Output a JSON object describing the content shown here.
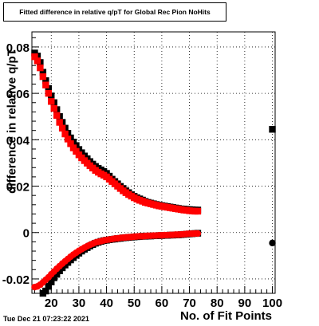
{
  "title": "Fitted difference in relative q/pT for Global Rec Pion NoHits",
  "timestamp": "Tue Dec 21 07:23:22 2021",
  "colors": {
    "red": "#ff0000",
    "black": "#000000",
    "grid": "#000000"
  },
  "chart_data": {
    "type": "scatter",
    "title": "Fitted difference in relative q/pT for Global Rec Pion NoHits",
    "xlabel": "No. of Fit Points",
    "ylabel": "difference in relative q/pT",
    "xlim": [
      13,
      101
    ],
    "ylim": [
      -0.0262,
      0.0865
    ],
    "grid": true,
    "x_ticks": [
      "20",
      "30",
      "40",
      "50",
      "60",
      "70",
      "80",
      "90",
      "100"
    ],
    "y_ticks": [
      "-0.02",
      "0",
      "0.02",
      "0.04",
      "0.06",
      "0.08"
    ],
    "series": [
      {
        "color": "#000000",
        "marker": "square",
        "x": [
          14,
          15,
          16,
          17,
          18,
          19,
          20,
          21,
          22,
          23,
          24,
          25,
          26,
          27,
          28,
          29,
          30,
          31,
          32,
          33,
          34,
          35,
          36,
          37,
          38,
          39,
          40,
          41,
          42,
          43,
          44,
          45,
          46,
          47,
          48,
          49,
          50,
          51,
          52,
          53,
          54,
          55,
          56,
          57,
          58,
          59,
          60,
          61,
          62,
          63,
          64,
          65,
          66,
          67,
          68,
          69,
          70,
          71,
          72,
          73
        ],
        "y": [
          0.0774,
          0.0761,
          0.0733,
          0.0691,
          0.0655,
          0.0621,
          0.0589,
          0.056,
          0.053,
          0.05,
          0.0475,
          0.045,
          0.0428,
          0.0408,
          0.039,
          0.0375,
          0.0358,
          0.0344,
          0.033,
          0.0318,
          0.0306,
          0.0295,
          0.0285,
          0.0277,
          0.027,
          0.0263,
          0.0255,
          0.0243,
          0.023,
          0.022,
          0.021,
          0.0199,
          0.019,
          0.018,
          0.0172,
          0.0163,
          0.0156,
          0.015,
          0.0145,
          0.014,
          0.0134,
          0.013,
          0.0127,
          0.0124,
          0.0121,
          0.0118,
          0.0116,
          0.0114,
          0.0112,
          0.011,
          0.0108,
          0.0106,
          0.0104,
          0.0102,
          0.0101,
          0.01,
          0.0099,
          0.0098,
          0.0097,
          0.0097
        ]
      },
      {
        "color": "#000000",
        "marker": "square",
        "x": [
          17,
          18,
          19,
          20,
          21,
          22,
          23,
          24,
          25,
          26,
          27,
          28,
          29,
          30,
          31,
          32,
          33,
          34,
          35,
          36,
          37,
          38,
          39,
          40,
          41,
          42,
          43,
          44,
          45,
          46,
          47,
          48,
          49,
          50,
          51,
          52,
          53,
          54,
          55,
          56,
          57,
          58,
          59,
          60,
          61,
          62,
          63,
          64,
          65,
          66,
          67,
          68,
          69,
          70,
          71,
          72,
          73
        ],
        "y": [
          -0.0262,
          -0.0252,
          -0.0232,
          -0.0213,
          -0.0195,
          -0.018,
          -0.0165,
          -0.0152,
          -0.014,
          -0.0129,
          -0.0118,
          -0.0108,
          -0.0098,
          -0.0089,
          -0.008,
          -0.0072,
          -0.0065,
          -0.0058,
          -0.0052,
          -0.0046,
          -0.0042,
          -0.0038,
          -0.0035,
          -0.0033,
          -0.0031,
          -0.0029,
          -0.0028,
          -0.0026,
          -0.0025,
          -0.0023,
          -0.0022,
          -0.0021,
          -0.002,
          -0.0019,
          -0.0018,
          -0.0017,
          -0.0016,
          -0.0016,
          -0.0015,
          -0.0015,
          -0.0014,
          -0.0014,
          -0.0013,
          -0.0013,
          -0.0012,
          -0.0012,
          -0.0011,
          -0.0011,
          -0.001,
          -0.001,
          -0.0009,
          -0.0008,
          -0.0007,
          -0.0006,
          -0.0005,
          -0.0004,
          -0.0003
        ]
      },
      {
        "color": "#ff0000",
        "marker": "square",
        "x": [
          14,
          15,
          16,
          17,
          18,
          19,
          20,
          21,
          22,
          23,
          24,
          25,
          26,
          27,
          28,
          29,
          30,
          31,
          32,
          33,
          34,
          35,
          36,
          37,
          38,
          39,
          40,
          41,
          42,
          43,
          44,
          45,
          46,
          47,
          48,
          49,
          50,
          51,
          52,
          53,
          54,
          55,
          56,
          57,
          58,
          59,
          60,
          61,
          62,
          63,
          64,
          65,
          66,
          67,
          68,
          69,
          70,
          71,
          72,
          73
        ],
        "y": [
          0.0758,
          0.074,
          0.071,
          0.0672,
          0.0636,
          0.06,
          0.0565,
          0.0535,
          0.0505,
          0.0475,
          0.045,
          0.0425,
          0.0403,
          0.0383,
          0.0365,
          0.035,
          0.0335,
          0.0322,
          0.031,
          0.0299,
          0.0288,
          0.0278,
          0.0268,
          0.026,
          0.0253,
          0.0247,
          0.024,
          0.023,
          0.022,
          0.021,
          0.02,
          0.019,
          0.018,
          0.0172,
          0.0164,
          0.0157,
          0.015,
          0.0144,
          0.0139,
          0.0135,
          0.013,
          0.0127,
          0.0124,
          0.0121,
          0.0118,
          0.0115,
          0.0113,
          0.0111,
          0.0109,
          0.0107,
          0.0105,
          0.0103,
          0.0101,
          0.0099,
          0.0097,
          0.0096,
          0.0094,
          0.0093,
          0.0092,
          0.0092
        ]
      },
      {
        "color": "#ff0000",
        "marker": "circle",
        "x": [
          14,
          15,
          16,
          17,
          18,
          19,
          20,
          21,
          22,
          23,
          24,
          25,
          26,
          27,
          28,
          29,
          30,
          31,
          32,
          33,
          34,
          35,
          36,
          37,
          38,
          39,
          40,
          41,
          42,
          43,
          44,
          45,
          46,
          47,
          48,
          49,
          50,
          51,
          52,
          53,
          54,
          55,
          56,
          57,
          58,
          59,
          60,
          61,
          62,
          63,
          64,
          65,
          66,
          67,
          68,
          69,
          70,
          71,
          72,
          73
        ],
        "y": [
          -0.0235,
          -0.0232,
          -0.0225,
          -0.0215,
          -0.0204,
          -0.0193,
          -0.018,
          -0.0168,
          -0.0156,
          -0.0145,
          -0.0134,
          -0.0124,
          -0.0114,
          -0.0104,
          -0.0095,
          -0.0087,
          -0.0079,
          -0.0072,
          -0.0065,
          -0.0059,
          -0.0053,
          -0.0048,
          -0.0043,
          -0.004,
          -0.0037,
          -0.0034,
          -0.0032,
          -0.003,
          -0.0028,
          -0.0026,
          -0.0025,
          -0.0023,
          -0.0022,
          -0.0021,
          -0.002,
          -0.0019,
          -0.0018,
          -0.0017,
          -0.0016,
          -0.0016,
          -0.0015,
          -0.0014,
          -0.0014,
          -0.0013,
          -0.0013,
          -0.0012,
          -0.0012,
          -0.0011,
          -0.0011,
          -0.001,
          -0.001,
          -0.0009,
          -0.0009,
          -0.0008,
          -0.0007,
          -0.0006,
          -0.0005,
          -0.0005,
          -0.0004,
          -0.0004
        ]
      },
      {
        "color": "#000000",
        "marker": "square",
        "x": [
          100
        ],
        "y": [
          0.0445
        ]
      },
      {
        "color": "#000000",
        "marker": "circle",
        "x": [
          100
        ],
        "y": [
          -0.0045
        ]
      }
    ]
  }
}
